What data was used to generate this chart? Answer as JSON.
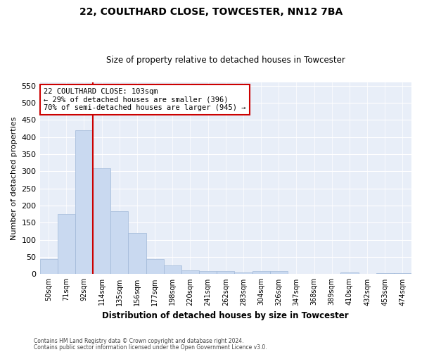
{
  "title1": "22, COULTHARD CLOSE, TOWCESTER, NN12 7BA",
  "title2": "Size of property relative to detached houses in Towcester",
  "xlabel": "Distribution of detached houses by size in Towcester",
  "ylabel": "Number of detached properties",
  "categories": [
    "50sqm",
    "71sqm",
    "92sqm",
    "114sqm",
    "135sqm",
    "156sqm",
    "177sqm",
    "198sqm",
    "220sqm",
    "241sqm",
    "262sqm",
    "283sqm",
    "304sqm",
    "326sqm",
    "347sqm",
    "368sqm",
    "389sqm",
    "410sqm",
    "432sqm",
    "453sqm",
    "474sqm"
  ],
  "values": [
    45,
    175,
    420,
    308,
    183,
    120,
    45,
    25,
    12,
    10,
    10,
    5,
    10,
    10,
    0,
    0,
    0,
    5,
    0,
    3,
    3
  ],
  "bar_color": "#c9d9f0",
  "bar_edge_color": "#a0b8d8",
  "annotation_text_line1": "22 COULTHARD CLOSE: 103sqm",
  "annotation_text_line2": "← 29% of detached houses are smaller (396)",
  "annotation_text_line3": "70% of semi-detached houses are larger (945) →",
  "annotation_box_color": "#ffffff",
  "annotation_box_edge": "#cc0000",
  "annotation_line_color": "#cc0000",
  "ylim": [
    0,
    560
  ],
  "yticks": [
    0,
    50,
    100,
    150,
    200,
    250,
    300,
    350,
    400,
    450,
    500,
    550
  ],
  "footer1": "Contains HM Land Registry data © Crown copyright and database right 2024.",
  "footer2": "Contains public sector information licensed under the Open Government Licence v3.0.",
  "bg_color": "#ffffff",
  "plot_bg_color": "#e8eef8"
}
